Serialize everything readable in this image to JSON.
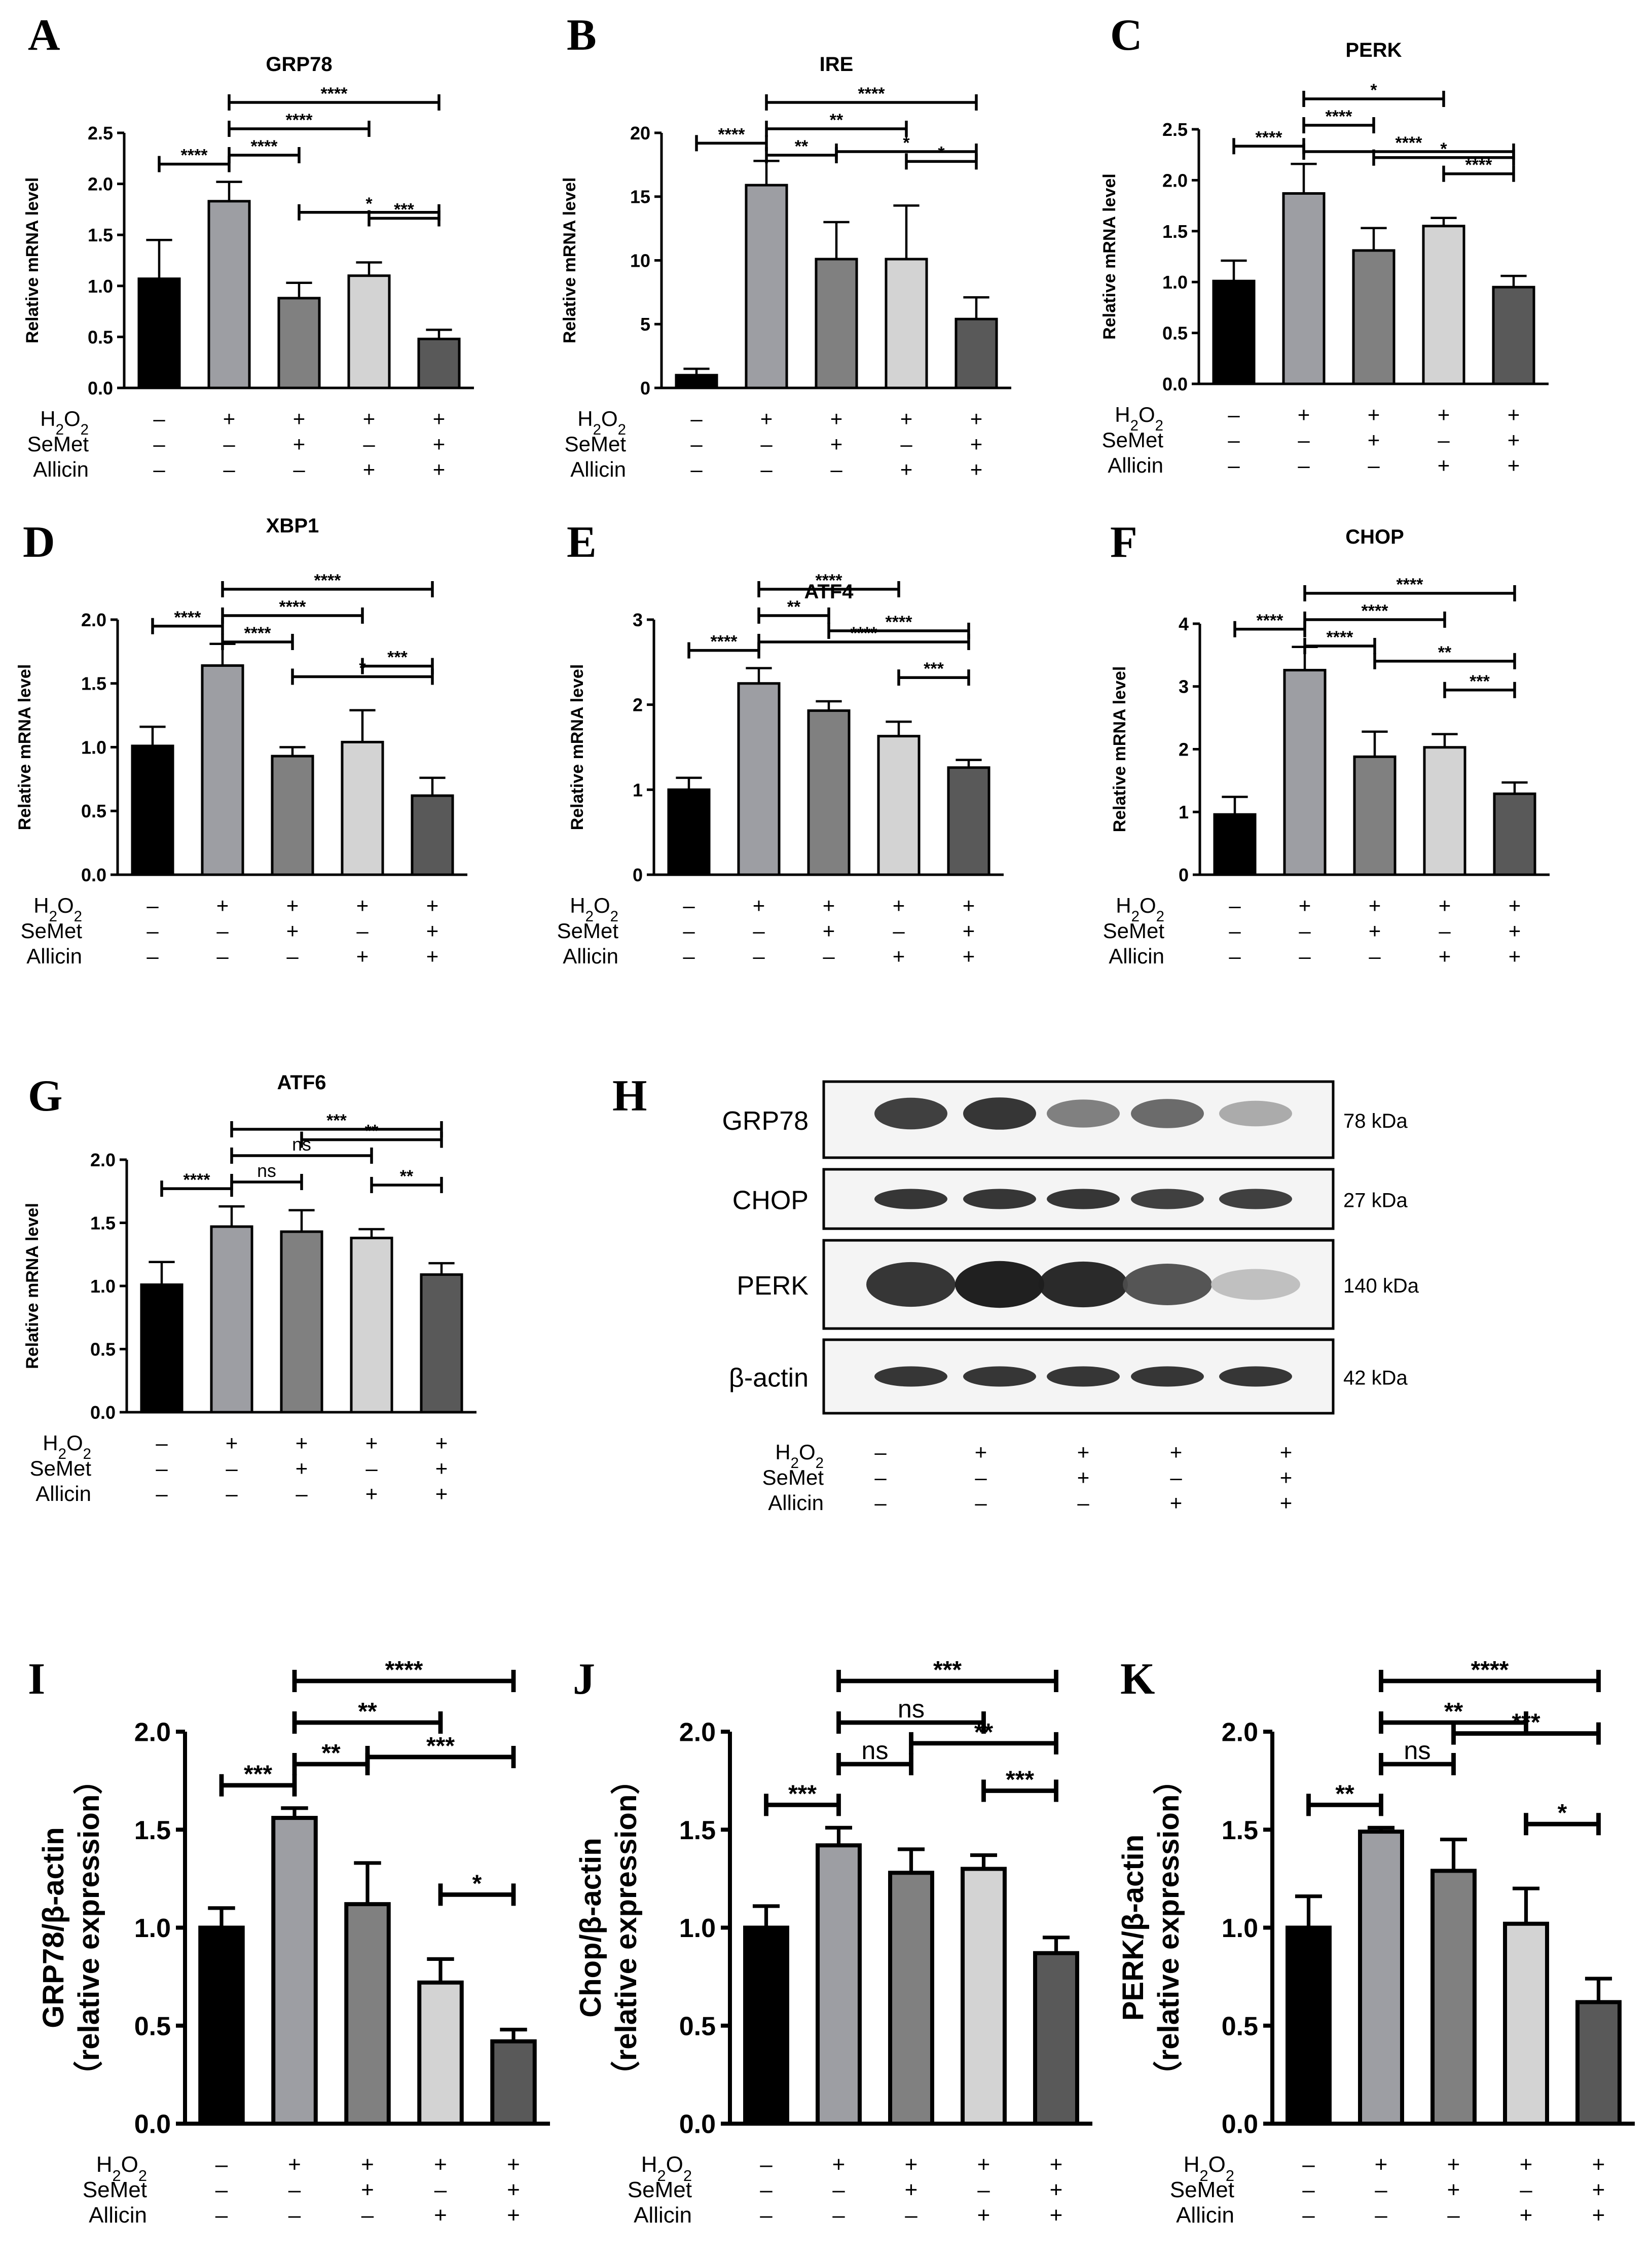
{
  "figure": {
    "conditions": {
      "rows": [
        "H2O2",
        "SeMet",
        "Allicin"
      ],
      "signs": [
        [
          "–",
          "+",
          "+",
          "+",
          "+"
        ],
        [
          "–",
          "–",
          "+",
          "–",
          "+"
        ],
        [
          "–",
          "–",
          "–",
          "+",
          "+"
        ]
      ]
    },
    "colors": {
      "groups": [
        "#000000",
        "#9d9ea3",
        "#808080",
        "#d3d3d3",
        "#595959"
      ],
      "bracket": "#000000"
    }
  },
  "chart_data": [
    {
      "panel": "A",
      "type": "bar",
      "title": "GRP78",
      "ylabel": "Relative mRNA level",
      "ylim": [
        0,
        2.5
      ],
      "yticks": [
        "0.0",
        "0.5",
        "1.0",
        "1.5",
        "2.0",
        "2.5"
      ],
      "values": [
        1.07,
        1.83,
        0.88,
        1.1,
        0.48
      ],
      "errors": [
        0.38,
        0.19,
        0.15,
        0.13,
        0.09
      ],
      "brackets": [
        {
          "from": 0,
          "to": 1,
          "label": "****"
        },
        {
          "from": 1,
          "to": 4,
          "label": "****"
        },
        {
          "from": 1,
          "to": 3,
          "label": "****"
        },
        {
          "from": 1,
          "to": 2,
          "label": "****"
        },
        {
          "from": 2,
          "to": 4,
          "label": "*"
        },
        {
          "from": 3,
          "to": 4,
          "label": "***"
        }
      ]
    },
    {
      "panel": "B",
      "type": "bar",
      "title": "IRE",
      "ylabel": "Relative mRNA level",
      "ylim": [
        0,
        20
      ],
      "yticks": [
        "0",
        "5",
        "10",
        "15",
        "20"
      ],
      "values": [
        1.0,
        15.9,
        10.1,
        10.1,
        5.4
      ],
      "errors": [
        0.5,
        1.9,
        2.9,
        4.2,
        1.7
      ],
      "brackets": [
        {
          "from": 0,
          "to": 1,
          "label": "****"
        },
        {
          "from": 1,
          "to": 4,
          "label": "****"
        },
        {
          "from": 1,
          "to": 3,
          "label": "**"
        },
        {
          "from": 1,
          "to": 2,
          "label": "**"
        },
        {
          "from": 2,
          "to": 4,
          "label": "*"
        },
        {
          "from": 3,
          "to": 4,
          "label": "*"
        }
      ]
    },
    {
      "panel": "C",
      "type": "bar",
      "title": "PERK",
      "ylabel": "Relative mRNA level",
      "ylim": [
        0,
        2.5
      ],
      "yticks": [
        "0.0",
        "0.5",
        "1.0",
        "1.5",
        "2.0",
        "2.5"
      ],
      "values": [
        1.01,
        1.87,
        1.31,
        1.55,
        0.95
      ],
      "errors": [
        0.2,
        0.29,
        0.22,
        0.08,
        0.11
      ],
      "brackets": [
        {
          "from": 0,
          "to": 1,
          "label": "****"
        },
        {
          "from": 1,
          "to": 3,
          "label": "*"
        },
        {
          "from": 1,
          "to": 2,
          "label": "****"
        },
        {
          "from": 1,
          "to": 4,
          "label": "****"
        },
        {
          "from": 2,
          "to": 4,
          "label": "*"
        },
        {
          "from": 3,
          "to": 4,
          "label": "****"
        }
      ]
    },
    {
      "panel": "D",
      "type": "bar",
      "title": "XBP1",
      "ylabel": "Relative mRNA level",
      "ylim": [
        0,
        2.0
      ],
      "yticks": [
        "0.0",
        "0.5",
        "1.0",
        "1.5",
        "2.0"
      ],
      "values": [
        1.01,
        1.64,
        0.93,
        1.04,
        0.62
      ],
      "errors": [
        0.15,
        0.17,
        0.07,
        0.25,
        0.14
      ],
      "brackets": [
        {
          "from": 0,
          "to": 1,
          "label": "****"
        },
        {
          "from": 1,
          "to": 4,
          "label": "****"
        },
        {
          "from": 1,
          "to": 3,
          "label": "****"
        },
        {
          "from": 1,
          "to": 2,
          "label": "****"
        },
        {
          "from": 2,
          "to": 4,
          "label": "*"
        },
        {
          "from": 3,
          "to": 4,
          "label": "***"
        }
      ]
    },
    {
      "panel": "E",
      "type": "bar",
      "title": "ATF4",
      "ylabel": "Relative mRNA level",
      "ylim": [
        0,
        3
      ],
      "yticks": [
        "0",
        "1",
        "2",
        "3"
      ],
      "values": [
        1.0,
        2.25,
        1.93,
        1.63,
        1.26
      ],
      "errors": [
        0.14,
        0.18,
        0.11,
        0.17,
        0.09
      ],
      "brackets": [
        {
          "from": 0,
          "to": 1,
          "label": "****"
        },
        {
          "from": 1,
          "to": 3,
          "label": "****"
        },
        {
          "from": 1,
          "to": 2,
          "label": "**"
        },
        {
          "from": 1,
          "to": 4,
          "label": "****"
        },
        {
          "from": 2,
          "to": 4,
          "label": "****"
        },
        {
          "from": 3,
          "to": 4,
          "label": "***"
        }
      ]
    },
    {
      "panel": "F",
      "type": "bar",
      "title": "CHOP",
      "ylabel": "Relative mRNA level",
      "ylim": [
        0,
        4
      ],
      "yticks": [
        "0",
        "1",
        "2",
        "3",
        "4"
      ],
      "values": [
        0.96,
        3.26,
        1.88,
        2.03,
        1.29
      ],
      "errors": [
        0.28,
        0.37,
        0.4,
        0.21,
        0.18
      ],
      "brackets": [
        {
          "from": 0,
          "to": 1,
          "label": "****"
        },
        {
          "from": 1,
          "to": 4,
          "label": "****"
        },
        {
          "from": 1,
          "to": 3,
          "label": "****"
        },
        {
          "from": 1,
          "to": 2,
          "label": "****"
        },
        {
          "from": 2,
          "to": 4,
          "label": "**"
        },
        {
          "from": 3,
          "to": 4,
          "label": "***"
        }
      ]
    },
    {
      "panel": "G",
      "type": "bar",
      "title": "ATF6",
      "ylabel": "Relative mRNA level",
      "ylim": [
        0,
        2.0
      ],
      "yticks": [
        "0.0",
        "0.5",
        "1.0",
        "1.5",
        "2.0"
      ],
      "values": [
        1.01,
        1.47,
        1.43,
        1.38,
        1.09
      ],
      "errors": [
        0.18,
        0.16,
        0.17,
        0.07,
        0.09
      ],
      "brackets": [
        {
          "from": 0,
          "to": 1,
          "label": "****"
        },
        {
          "from": 1,
          "to": 4,
          "label": "***"
        },
        {
          "from": 1,
          "to": 3,
          "label": "ns"
        },
        {
          "from": 1,
          "to": 2,
          "label": "ns"
        },
        {
          "from": 2,
          "to": 4,
          "label": "**"
        },
        {
          "from": 3,
          "to": 4,
          "label": "**"
        }
      ]
    },
    {
      "panel": "I",
      "type": "bar",
      "title": "",
      "ylabel": "GRP78/β-actin",
      "ylabel2": "（relative expression）",
      "ylim": [
        0,
        2.0
      ],
      "yticks": [
        "0.0",
        "0.5",
        "1.0",
        "1.5",
        "2.0"
      ],
      "values": [
        1.0,
        1.56,
        1.12,
        0.72,
        0.42
      ],
      "errors": [
        0.1,
        0.05,
        0.21,
        0.12,
        0.06
      ],
      "brackets": [
        {
          "from": 0,
          "to": 1,
          "label": "***"
        },
        {
          "from": 1,
          "to": 4,
          "label": "****"
        },
        {
          "from": 1,
          "to": 3,
          "label": "**"
        },
        {
          "from": 1,
          "to": 2,
          "label": "**"
        },
        {
          "from": 2,
          "to": 4,
          "label": "***"
        },
        {
          "from": 3,
          "to": 4,
          "label": "*"
        }
      ]
    },
    {
      "panel": "J",
      "type": "bar",
      "title": "",
      "ylabel": "Chop/β-actin",
      "ylabel2": "（relative expression）",
      "ylim": [
        0,
        2.0
      ],
      "yticks": [
        "0.0",
        "0.5",
        "1.0",
        "1.5",
        "2.0"
      ],
      "values": [
        1.0,
        1.42,
        1.28,
        1.3,
        0.87
      ],
      "errors": [
        0.11,
        0.09,
        0.12,
        0.07,
        0.08
      ],
      "brackets": [
        {
          "from": 0,
          "to": 1,
          "label": "***"
        },
        {
          "from": 1,
          "to": 4,
          "label": "***"
        },
        {
          "from": 1,
          "to": 3,
          "label": "ns"
        },
        {
          "from": 1,
          "to": 2,
          "label": "ns"
        },
        {
          "from": 2,
          "to": 4,
          "label": "**"
        },
        {
          "from": 3,
          "to": 4,
          "label": "***"
        }
      ]
    },
    {
      "panel": "K",
      "type": "bar",
      "title": "",
      "ylabel": "PERK/β-actin",
      "ylabel2": "（relative expression）",
      "ylim": [
        0,
        2.0
      ],
      "yticks": [
        "0.0",
        "0.5",
        "1.0",
        "1.5",
        "2.0"
      ],
      "values": [
        1.0,
        1.49,
        1.29,
        1.02,
        0.62
      ],
      "errors": [
        0.16,
        0.02,
        0.16,
        0.18,
        0.12
      ],
      "brackets": [
        {
          "from": 0,
          "to": 1,
          "label": "**"
        },
        {
          "from": 1,
          "to": 4,
          "label": "****"
        },
        {
          "from": 1,
          "to": 3,
          "label": "**"
        },
        {
          "from": 1,
          "to": 2,
          "label": "ns"
        },
        {
          "from": 2,
          "to": 4,
          "label": "***"
        },
        {
          "from": 3,
          "to": 4,
          "label": "*"
        }
      ]
    }
  ],
  "blot": {
    "panel": "H",
    "rows": [
      {
        "protein": "GRP78",
        "kda": "78 kDa",
        "intensity": [
          0.85,
          0.9,
          0.55,
          0.65,
          0.35
        ]
      },
      {
        "protein": "CHOP",
        "kda": "27 kDa",
        "intensity": [
          0.9,
          0.9,
          0.9,
          0.85,
          0.85
        ]
      },
      {
        "protein": "PERK",
        "kda": "140 kDa",
        "intensity": [
          0.9,
          1.0,
          0.95,
          0.75,
          0.25
        ]
      },
      {
        "protein": "β-actin",
        "kda": "42 kDa",
        "intensity": [
          0.9,
          0.9,
          0.9,
          0.9,
          0.9
        ]
      }
    ]
  }
}
